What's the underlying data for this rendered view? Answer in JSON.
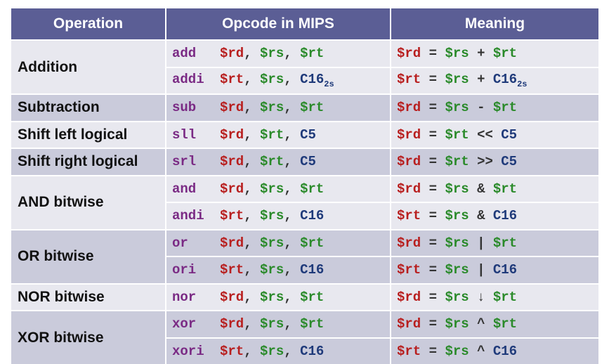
{
  "headers": {
    "operation": "Operation",
    "opcode": "Opcode in MIPS",
    "meaning": "Meaning"
  },
  "operations": {
    "addition": "Addition",
    "subtraction": "Subtraction",
    "sll": "Shift left logical",
    "srl": "Shift right logical",
    "and": "AND bitwise",
    "or": "OR bitwise",
    "nor": "NOR bitwise",
    "xor": "XOR bitwise"
  },
  "mnemonics": {
    "add": "add",
    "addi": "addi",
    "sub": "sub",
    "sll": "sll",
    "srl": "srl",
    "and": "and",
    "andi": "andi",
    "or": "or",
    "ori": "ori",
    "nor": "nor",
    "xor": "xor",
    "xori": "xori"
  },
  "operands": {
    "rd": "$rd",
    "rs": "$rs",
    "rt": "$rt",
    "c16": "C16",
    "c5": "C5",
    "sub_2s": "2s",
    "comma": ",",
    "eq": "="
  },
  "operators": {
    "plus": "+",
    "minus": "-",
    "shl": "<<",
    "shr": ">>",
    "amp": "&",
    "pipe": "|",
    "nor": "↓",
    "xor": "^"
  },
  "colors": {
    "header_bg": "#5b5e95",
    "row_light": "#e8e8ef",
    "row_dark": "#cacbdb",
    "mnemonic": "#7a2a84",
    "rd": "#b81e1e",
    "rs_rt": "#2a8a2a",
    "constant": "#1f3a7a"
  }
}
